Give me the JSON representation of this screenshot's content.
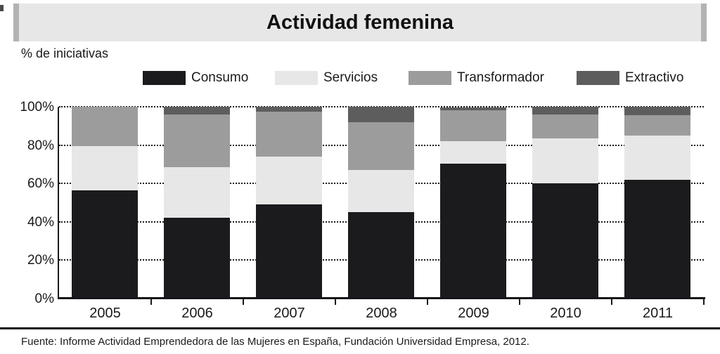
{
  "header": {
    "title": "Actividad femenina"
  },
  "chart_data": {
    "type": "bar",
    "stacked": true,
    "title": "Actividad femenina",
    "ylabel": "% de iniciativas",
    "xlabel": "",
    "categories": [
      "2005",
      "2006",
      "2007",
      "2008",
      "2009",
      "2010",
      "2011"
    ],
    "series": [
      {
        "name": "Consumo",
        "color": "#1b1b1e",
        "values": [
          56.5,
          42,
          49,
          45,
          70.5,
          60,
          62
        ]
      },
      {
        "name": "Servicios",
        "color": "#e7e7e7",
        "values": [
          23,
          26.5,
          25,
          22,
          11.5,
          23.5,
          23
        ]
      },
      {
        "name": "Transformador",
        "color": "#9c9c9c",
        "values": [
          20.5,
          27.5,
          23.5,
          25,
          16,
          12.5,
          10.5
        ]
      },
      {
        "name": "Extractivo",
        "color": "#5d5d5d",
        "values": [
          0,
          4,
          2.5,
          8,
          1.7,
          4,
          4.5
        ]
      }
    ],
    "units": "percent",
    "ylim": [
      0,
      100
    ],
    "y_ticks": [
      "0%",
      "20%",
      "40%",
      "60%",
      "80%",
      "100%"
    ],
    "grid": "horizontal-dotted",
    "legend_position": "top"
  },
  "footer": {
    "source": "Fuente: Informe Actividad Emprendedora de las Mujeres en España, Fundación Universidad Empresa, 2012."
  }
}
